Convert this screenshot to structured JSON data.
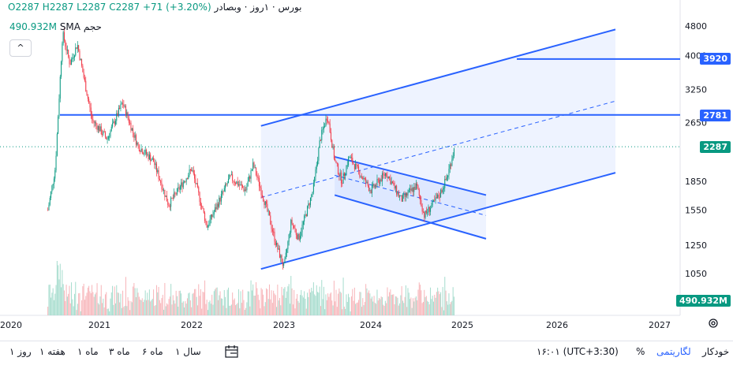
{
  "legend": {
    "title": "بورس · ۱روز · وبصادر",
    "ohlc": "O2287 H2287 L2287 C2287 +71 (+3.20%)",
    "volume_label": "حجم",
    "volume_sma": "SMA",
    "volume_value": "490.932M"
  },
  "tags": {
    "line_3920": "3920",
    "line_2781": "2781",
    "last_price": "2287",
    "volume": "490.932M"
  },
  "colors": {
    "up": "#089981",
    "down": "#f23645",
    "drawing": "#2962ff",
    "last_price": "#089981",
    "volume_up": "#a5dccd",
    "volume_down": "#f7b5b9"
  },
  "bottom_bar": {
    "ranges": [
      "۱ روز",
      "۱ هفته",
      "۱ ماه",
      "۳ ماه",
      "۶ ماه",
      "۱ سال"
    ],
    "time": "۱۶:۰۱ (UTC+3:30)",
    "percent": "%",
    "log": "لگاریتمی",
    "auto": "خودکار"
  },
  "chart_data": {
    "type": "candlestick",
    "scale": "log",
    "y_ticks": [
      1050,
      1250,
      1550,
      1850,
      2650,
      3250,
      4000,
      4800
    ],
    "x_ticks": [
      "2020",
      "2021",
      "2022",
      "2023",
      "2024",
      "2025",
      "2026",
      "2027"
    ],
    "price_path": [
      [
        "2020-06",
        1550
      ],
      [
        "2020-07",
        2000
      ],
      [
        "2020-08",
        4600
      ],
      [
        "2020-09",
        3800
      ],
      [
        "2020-10",
        4300
      ],
      [
        "2020-11",
        3400
      ],
      [
        "2020-12",
        2700
      ],
      [
        "2021-02",
        2400
      ],
      [
        "2021-04",
        3000
      ],
      [
        "2021-06",
        2300
      ],
      [
        "2021-08",
        2100
      ],
      [
        "2021-10",
        1600
      ],
      [
        "2022-01",
        2000
      ],
      [
        "2022-03",
        1400
      ],
      [
        "2022-06",
        1900
      ],
      [
        "2022-08",
        1750
      ],
      [
        "2022-09",
        2050
      ],
      [
        "2022-11",
        1500
      ],
      [
        "2022-12",
        1250
      ],
      [
        "2023-01",
        1090
      ],
      [
        "2023-02",
        1450
      ],
      [
        "2023-03",
        1300
      ],
      [
        "2023-05",
        1750
      ],
      [
        "2023-06",
        2400
      ],
      [
        "2023-07",
        2780
      ],
      [
        "2023-08",
        2100
      ],
      [
        "2023-09",
        1850
      ],
      [
        "2023-10",
        2150
      ],
      [
        "2024-01",
        1750
      ],
      [
        "2024-03",
        1950
      ],
      [
        "2024-05",
        1650
      ],
      [
        "2024-07",
        1800
      ],
      [
        "2024-08",
        1500
      ],
      [
        "2024-10",
        1700
      ],
      [
        "2024-11",
        1900
      ],
      [
        "2024-12",
        2287
      ]
    ],
    "volume_last": "490.932M",
    "horizontal_lines": [
      3920,
      2781
    ],
    "last_price": 2287
  }
}
